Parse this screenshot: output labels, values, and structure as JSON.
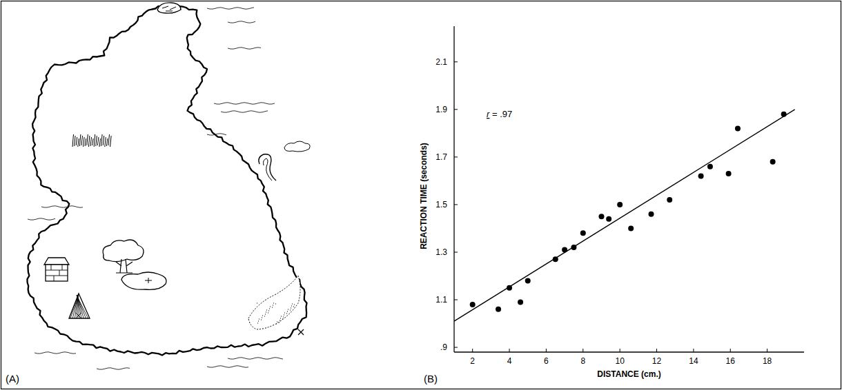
{
  "figure": {
    "panel_labels": [
      "(A)",
      "(B)"
    ]
  },
  "chart_data": {
    "type": "scatter",
    "xlabel": "DISTANCE (cm.)",
    "ylabel": "REACTION TIME (seconds)",
    "annotation": "r = .97",
    "series": [
      {
        "type": "scatter",
        "marker": "circle",
        "color": "#000000",
        "x": [
          2,
          3.4,
          4,
          4.6,
          5,
          6.5,
          7,
          7.5,
          8,
          9,
          9.4,
          10,
          10.6,
          11.7,
          12.7,
          14.4,
          14.9,
          15.9,
          16.4,
          18.3,
          18.9
        ],
        "values": [
          1.08,
          1.06,
          1.15,
          1.09,
          1.18,
          1.27,
          1.31,
          1.32,
          1.38,
          1.45,
          1.44,
          1.5,
          1.4,
          1.46,
          1.52,
          1.62,
          1.66,
          1.63,
          1.82,
          1.68,
          1.88
        ]
      },
      {
        "type": "line",
        "line_style": "solid",
        "color": "#000000",
        "x": [
          1,
          19.5
        ],
        "values": [
          1.01,
          1.9
        ]
      }
    ],
    "xlim": [
      1,
      20
    ],
    "xticks": [
      2,
      4,
      6,
      8,
      10,
      12,
      14,
      16,
      18
    ],
    "ylim": [
      0.88,
      2.25
    ],
    "yticks": [
      {
        "value": 0.9,
        "label": ".9"
      },
      1.1,
      1.3,
      1.5,
      1.7,
      1.9,
      2.1
    ],
    "grid": false
  }
}
